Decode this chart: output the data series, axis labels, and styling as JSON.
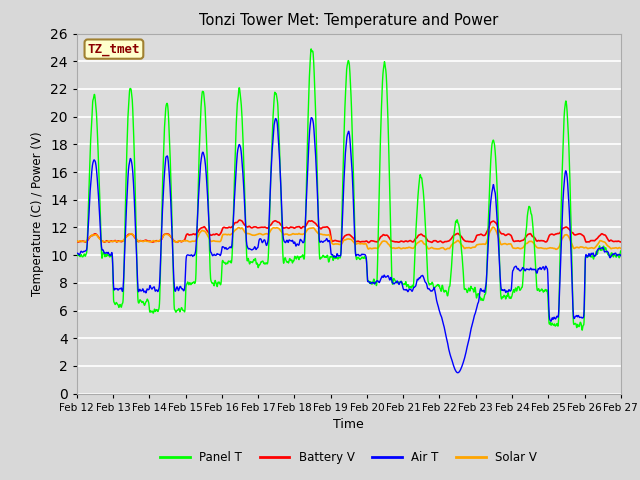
{
  "title": "Tonzi Tower Met: Temperature and Power",
  "xlabel": "Time",
  "ylabel": "Temperature (C) / Power (V)",
  "ylim": [
    0,
    26
  ],
  "yticks": [
    0,
    2,
    4,
    6,
    8,
    10,
    12,
    14,
    16,
    18,
    20,
    22,
    24,
    26
  ],
  "xtick_labels": [
    "Feb 12",
    "Feb 13",
    "Feb 14",
    "Feb 15",
    "Feb 16",
    "Feb 17",
    "Feb 18",
    "Feb 19",
    "Feb 20",
    "Feb 21",
    "Feb 22",
    "Feb 23",
    "Feb 24",
    "Feb 25",
    "Feb 26",
    "Feb 27"
  ],
  "tz_label": "TZ_tmet",
  "fig_bg_color": "#d8d8d8",
  "plot_bg_color": "#dcdcdc",
  "panel_color": "#00ff00",
  "battery_color": "#ff0000",
  "air_color": "#0000ff",
  "solar_color": "#ffa500",
  "grid_color": "#ffffff",
  "legend_entries": [
    "Panel T",
    "Battery V",
    "Air T",
    "Solar V"
  ]
}
